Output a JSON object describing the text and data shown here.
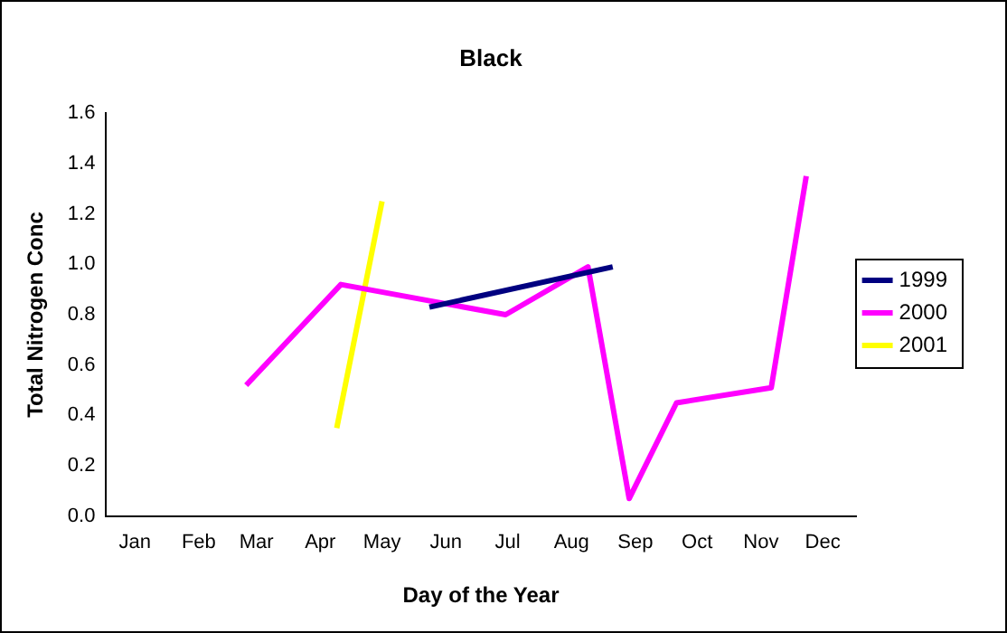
{
  "chart_data": {
    "type": "line",
    "title": "Black",
    "xlabel": "Day of the Year",
    "ylabel": "Total Nitrogen Conc",
    "xlim": [
      "--01-01",
      "--12-31"
    ],
    "xticks": [
      {
        "value": "--01-15",
        "label": "Jan"
      },
      {
        "value": "--02-15",
        "label": "Feb"
      },
      {
        "value": "--03-15",
        "label": "Mar"
      },
      {
        "value": "--04-15",
        "label": "Apr"
      },
      {
        "value": "--05-15",
        "label": "May"
      },
      {
        "value": "--06-15",
        "label": "Jun"
      },
      {
        "value": "--07-15",
        "label": "Jul"
      },
      {
        "value": "--08-15",
        "label": "Aug"
      },
      {
        "value": "--09-15",
        "label": "Sep"
      },
      {
        "value": "--10-15",
        "label": "Oct"
      },
      {
        "value": "--11-15",
        "label": "Nov"
      },
      {
        "value": "--12-15",
        "label": "Dec"
      }
    ],
    "ylim": [
      0,
      1.6
    ],
    "yticks": [
      {
        "value": 0,
        "label": "0.0"
      },
      0.2,
      0.4,
      0.6,
      0.8,
      {
        "value": 1,
        "label": "1.0"
      },
      1.2,
      1.4,
      1.6
    ],
    "grid": false,
    "legend": "right",
    "marker": "none",
    "line_style": "solid",
    "series": [
      {
        "name": "1999",
        "color": "#000080",
        "x": [
          "--06-07",
          "--09-04"
        ],
        "values": [
          0.83,
          0.99
        ]
      },
      {
        "name": "2000",
        "color": "#ff00ff",
        "x": [
          "--03-10",
          "--04-25",
          "--07-14",
          "--08-23",
          "--09-12",
          "--10-05",
          "--11-20",
          "--12-07"
        ],
        "values": [
          0.52,
          0.92,
          0.8,
          0.99,
          0.07,
          0.45,
          0.51,
          1.35
        ]
      },
      {
        "name": "2001",
        "color": "#ffff00",
        "x": [
          "--04-23",
          "--05-15"
        ],
        "values": [
          0.35,
          1.25
        ]
      }
    ]
  }
}
